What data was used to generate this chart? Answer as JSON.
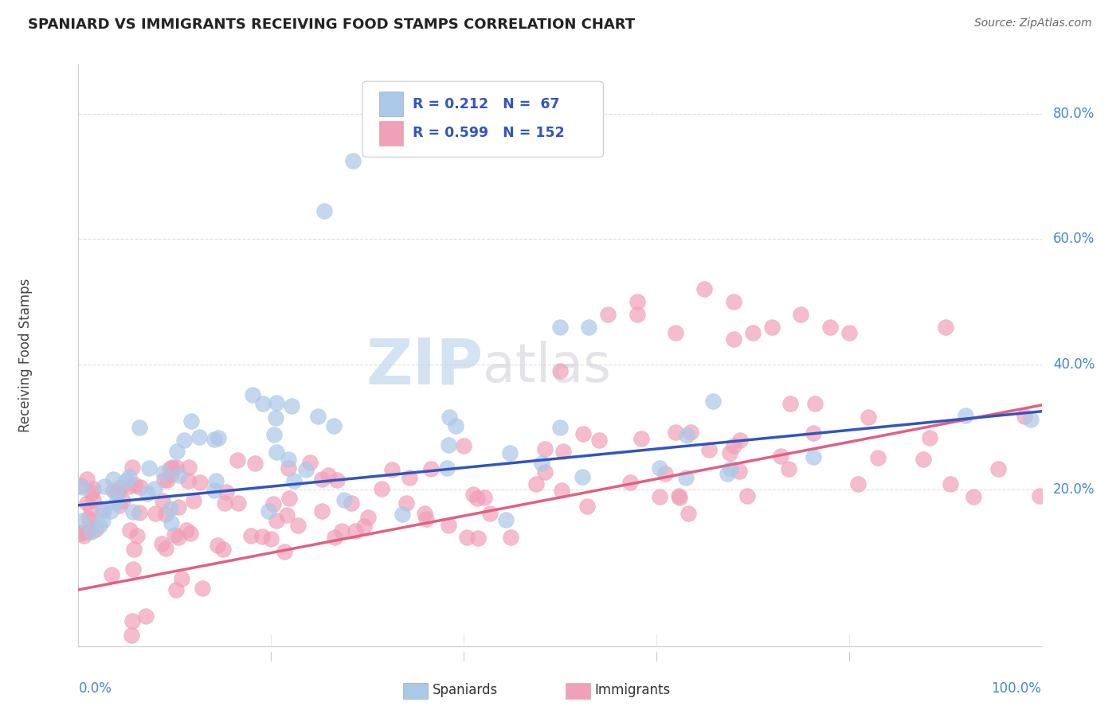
{
  "title": "SPANIARD VS IMMIGRANTS RECEIVING FOOD STAMPS CORRELATION CHART",
  "source_text": "Source: ZipAtlas.com",
  "ylabel": "Receiving Food Stamps",
  "yticks": [
    "20.0%",
    "40.0%",
    "60.0%",
    "80.0%"
  ],
  "ytick_vals": [
    0.2,
    0.4,
    0.6,
    0.8
  ],
  "xlim": [
    0.0,
    1.0
  ],
  "ylim": [
    -0.05,
    0.88
  ],
  "watermark_zip": "ZIP",
  "watermark_atlas": "atlas",
  "legend_text1": "R = 0.212   N =  67",
  "legend_text2": "R = 0.599   N = 152",
  "spaniards_color": "#aac8e8",
  "immigrants_color": "#f0a0b8",
  "line_blue": "#3355bb",
  "line_pink": "#e06080",
  "legend_color_text": "#3355bb",
  "title_color": "#222222",
  "source_color": "#666666",
  "ytick_color": "#4488cc",
  "xtick_color": "#4488cc",
  "spine_color": "#cccccc",
  "grid_color": "#dddddd",
  "blue_line_x": [
    0.0,
    1.0
  ],
  "blue_line_y": [
    0.175,
    0.325
  ],
  "pink_line_x": [
    0.0,
    1.0
  ],
  "pink_line_y": [
    0.04,
    0.335
  ]
}
